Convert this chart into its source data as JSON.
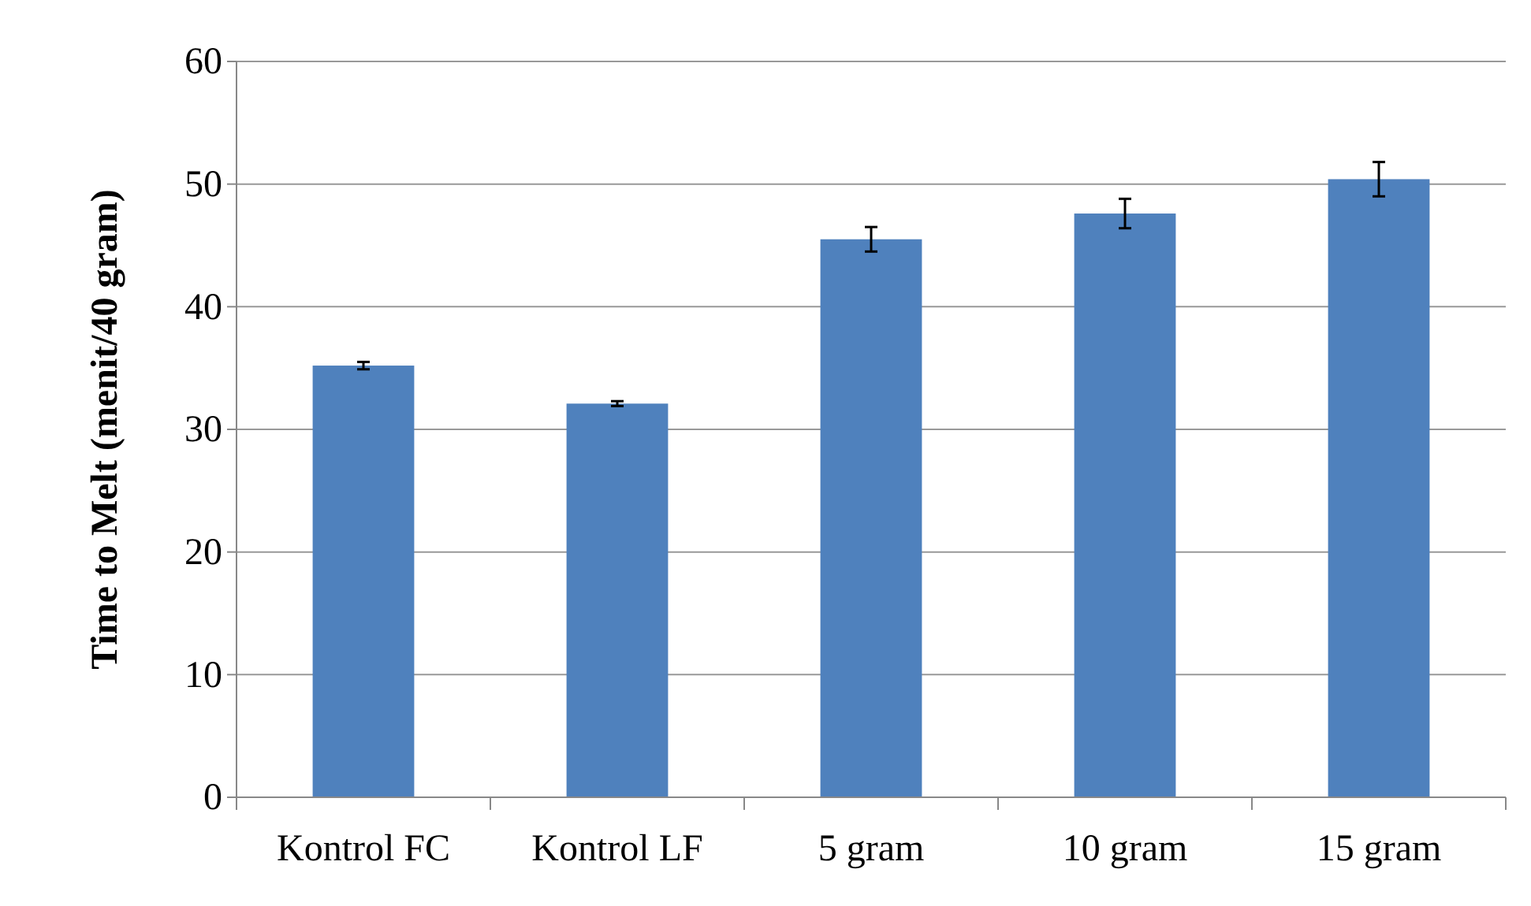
{
  "chart_data": {
    "type": "bar",
    "ylabel": "Time to Melt (menit/40 gram)",
    "categories": [
      "Kontrol FC",
      "Kontrol LF",
      "5 gram",
      "10 gram",
      "15 gram"
    ],
    "values": [
      35.2,
      32.1,
      45.5,
      47.6,
      50.4
    ],
    "errors": [
      0.3,
      0.2,
      1.0,
      1.2,
      1.4
    ],
    "color": "#4f81bd",
    "ylim": [
      0,
      60
    ],
    "yticks": [
      0,
      10,
      20,
      30,
      40,
      50,
      60
    ],
    "grid": "y"
  }
}
